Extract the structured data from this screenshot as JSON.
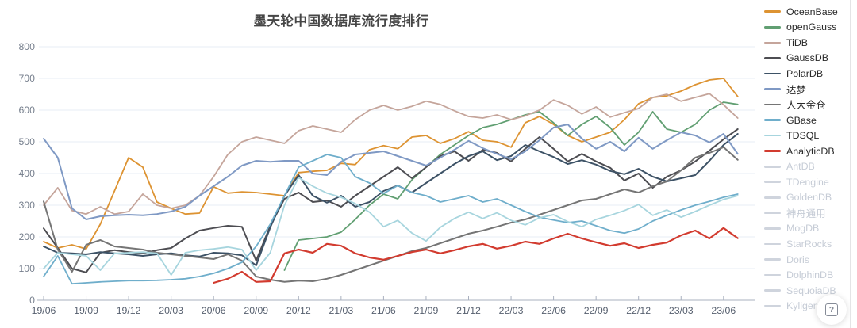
{
  "page": {
    "title": "墨天轮中国数据库流行度排行"
  },
  "help_button": {
    "glyph": "?"
  },
  "colors": {
    "grid": "#E7EDF6",
    "axis_line": "#A9B0BF",
    "y_label": "#757E8C",
    "x_label": "#57606F",
    "title_text": "#464646",
    "disabled_legend": "#C6CCD6",
    "disabled_swatch": "#CFD4DD"
  },
  "legend": {
    "items": [
      {
        "name": "OceanBase",
        "color": "#DD9332",
        "disabled": false
      },
      {
        "name": "openGauss",
        "color": "#619F72",
        "disabled": false
      },
      {
        "name": "TiDB",
        "color": "#C5A59B",
        "disabled": false
      },
      {
        "name": "GaussDB",
        "color": "#4D4D52",
        "disabled": false
      },
      {
        "name": "PolarDB",
        "color": "#3D5266",
        "disabled": false
      },
      {
        "name": "达梦",
        "color": "#7F99C4",
        "disabled": false
      },
      {
        "name": "人大金仓",
        "color": "#757575",
        "disabled": false
      },
      {
        "name": "GBase",
        "color": "#6FAECB",
        "disabled": false
      },
      {
        "name": "TDSQL",
        "color": "#A7D5DE",
        "disabled": false
      },
      {
        "name": "AnalyticDB",
        "color": "#D23B2F",
        "disabled": false
      },
      {
        "name": "AntDB",
        "color": "#CFD4DD",
        "disabled": true
      },
      {
        "name": "TDengine",
        "color": "#CFD4DD",
        "disabled": true
      },
      {
        "name": "GoldenDB",
        "color": "#CFD4DD",
        "disabled": true
      },
      {
        "name": "神舟通用",
        "color": "#CFD4DD",
        "disabled": true
      },
      {
        "name": "MogDB",
        "color": "#CFD4DD",
        "disabled": true
      },
      {
        "name": "StarRocks",
        "color": "#CFD4DD",
        "disabled": true
      },
      {
        "name": "Doris",
        "color": "#CFD4DD",
        "disabled": true
      },
      {
        "name": "DolphinDB",
        "color": "#CFD4DD",
        "disabled": true
      },
      {
        "name": "SequoiaDB",
        "color": "#CFD4DD",
        "disabled": true
      },
      {
        "name": "Kyligence",
        "color": "#CFD4DD",
        "disabled": true
      }
    ]
  },
  "chart_data": {
    "type": "line",
    "title": "墨天轮中国数据库流行度排行",
    "xlabel": "",
    "ylabel": "",
    "ylim": [
      0,
      800
    ],
    "grid": true,
    "legend_position": "right",
    "x_axis": {
      "labels": [
        "19/06",
        "19/09",
        "19/12",
        "20/03",
        "20/06",
        "20/09",
        "20/12",
        "21/03",
        "21/06",
        "21/09",
        "21/12",
        "22/03",
        "22/06",
        "22/09",
        "22/12",
        "23/03",
        "23/06"
      ],
      "months": [
        "2019/06",
        "2019/07",
        "2019/08",
        "2019/09",
        "2019/10",
        "2019/11",
        "2019/12",
        "2020/01",
        "2020/02",
        "2020/03",
        "2020/04",
        "2020/05",
        "2020/06",
        "2020/07",
        "2020/08",
        "2020/09",
        "2020/10",
        "2020/11",
        "2020/12",
        "2021/01",
        "2021/02",
        "2021/03",
        "2021/04",
        "2021/05",
        "2021/06",
        "2021/07",
        "2021/08",
        "2021/09",
        "2021/10",
        "2021/11",
        "2021/12",
        "2022/01",
        "2022/02",
        "2022/03",
        "2022/04",
        "2022/05",
        "2022/06",
        "2022/07",
        "2022/08",
        "2022/09",
        "2022/10",
        "2022/11",
        "2022/12",
        "2023/01",
        "2023/02",
        "2023/03",
        "2023/04",
        "2023/05",
        "2023/06",
        "2023/07"
      ]
    },
    "y_axis": {
      "min": 0,
      "max": 800,
      "step": 100,
      "ticks": [
        0,
        100,
        200,
        300,
        400,
        500,
        600,
        700,
        800
      ]
    },
    "series": [
      {
        "name": "OceanBase",
        "color": "#DD9332",
        "width": 1.8,
        "values": [
          185,
          165,
          175,
          162,
          240,
          345,
          450,
          420,
          310,
          290,
          272,
          275,
          358,
          338,
          342,
          340,
          335,
          330,
          403,
          407,
          410,
          432,
          428,
          475,
          488,
          478,
          515,
          520,
          495,
          510,
          532,
          505,
          500,
          483,
          560,
          580,
          555,
          520,
          500,
          515,
          530,
          570,
          620,
          640,
          645,
          660,
          680,
          695,
          700,
          643
        ]
      },
      {
        "name": "openGauss",
        "color": "#619F72",
        "width": 1.8,
        "values": [
          null,
          null,
          null,
          null,
          null,
          null,
          null,
          null,
          null,
          null,
          null,
          null,
          null,
          null,
          null,
          null,
          null,
          95,
          190,
          195,
          200,
          215,
          255,
          300,
          335,
          320,
          380,
          420,
          460,
          490,
          520,
          545,
          555,
          570,
          585,
          595,
          560,
          520,
          555,
          580,
          545,
          490,
          530,
          595,
          540,
          530,
          555,
          600,
          625,
          618
        ]
      },
      {
        "name": "TiDB",
        "color": "#C5A59B",
        "width": 1.8,
        "values": [
          300,
          355,
          283,
          272,
          295,
          272,
          280,
          335,
          300,
          290,
          300,
          330,
          390,
          460,
          500,
          515,
          505,
          495,
          535,
          550,
          540,
          530,
          570,
          600,
          615,
          600,
          612,
          628,
          618,
          598,
          580,
          575,
          585,
          570,
          582,
          600,
          632,
          615,
          588,
          610,
          578,
          592,
          605,
          640,
          650,
          628,
          640,
          652,
          617,
          575
        ]
      },
      {
        "name": "GaussDB",
        "color": "#4D4D52",
        "width": 2,
        "values": [
          227,
          165,
          100,
          88,
          150,
          158,
          152,
          148,
          158,
          165,
          195,
          220,
          228,
          235,
          232,
          125,
          235,
          320,
          340,
          310,
          315,
          295,
          330,
          360,
          390,
          420,
          385,
          420,
          455,
          470,
          440,
          475,
          465,
          438,
          478,
          515,
          478,
          438,
          462,
          438,
          418,
          378,
          400,
          355,
          390,
          410,
          438,
          472,
          508,
          540
        ]
      },
      {
        "name": "PolarDB",
        "color": "#3D5266",
        "width": 2,
        "values": [
          170,
          150,
          148,
          145,
          152,
          148,
          145,
          140,
          145,
          148,
          142,
          138,
          150,
          148,
          142,
          110,
          230,
          330,
          395,
          330,
          308,
          330,
          295,
          310,
          345,
          362,
          340,
          370,
          400,
          430,
          455,
          470,
          442,
          455,
          490,
          470,
          452,
          430,
          442,
          428,
          408,
          398,
          415,
          390,
          375,
          385,
          395,
          440,
          490,
          525
        ]
      },
      {
        "name": "达梦",
        "color": "#7F99C4",
        "width": 2,
        "values": [
          510,
          450,
          290,
          255,
          265,
          268,
          270,
          268,
          272,
          280,
          295,
          330,
          360,
          390,
          425,
          440,
          437,
          440,
          440,
          400,
          395,
          437,
          460,
          465,
          470,
          455,
          440,
          425,
          450,
          475,
          503,
          480,
          462,
          445,
          470,
          505,
          545,
          555,
          510,
          478,
          500,
          470,
          513,
          478,
          505,
          530,
          520,
          498,
          525,
          462
        ]
      },
      {
        "name": "人大金仓",
        "color": "#757575",
        "width": 2,
        "values": [
          312,
          160,
          90,
          175,
          190,
          170,
          165,
          160,
          150,
          145,
          140,
          135,
          130,
          145,
          125,
          75,
          65,
          58,
          62,
          60,
          68,
          80,
          95,
          110,
          125,
          140,
          155,
          165,
          180,
          195,
          210,
          220,
          232,
          245,
          255,
          270,
          285,
          300,
          315,
          320,
          335,
          350,
          340,
          360,
          375,
          410,
          450,
          465,
          483,
          443
        ]
      },
      {
        "name": "GBase",
        "color": "#6FAECB",
        "width": 1.8,
        "values": [
          75,
          140,
          52,
          55,
          58,
          60,
          62,
          62,
          63,
          65,
          68,
          75,
          85,
          100,
          120,
          170,
          240,
          330,
          420,
          440,
          460,
          450,
          390,
          370,
          337,
          362,
          340,
          330,
          310,
          320,
          330,
          310,
          320,
          300,
          280,
          262,
          253,
          245,
          250,
          235,
          220,
          212,
          225,
          250,
          268,
          285,
          300,
          312,
          325,
          335
        ]
      },
      {
        "name": "TDSQL",
        "color": "#A7D5DE",
        "width": 1.8,
        "values": [
          100,
          150,
          145,
          140,
          95,
          148,
          150,
          152,
          148,
          80,
          150,
          158,
          162,
          168,
          160,
          95,
          150,
          300,
          387,
          360,
          338,
          325,
          305,
          278,
          232,
          252,
          212,
          187,
          230,
          258,
          278,
          258,
          276,
          252,
          238,
          260,
          270,
          248,
          232,
          255,
          268,
          283,
          302,
          268,
          285,
          262,
          280,
          300,
          318,
          330
        ]
      },
      {
        "name": "AnalyticDB",
        "color": "#D23B2F",
        "width": 2.2,
        "values": [
          null,
          null,
          null,
          null,
          null,
          null,
          null,
          null,
          null,
          null,
          null,
          null,
          55,
          68,
          90,
          58,
          60,
          148,
          160,
          150,
          178,
          172,
          148,
          135,
          128,
          140,
          152,
          160,
          148,
          158,
          170,
          178,
          163,
          172,
          185,
          178,
          195,
          210,
          195,
          183,
          172,
          180,
          165,
          175,
          182,
          205,
          220,
          195,
          228,
          196
        ]
      }
    ]
  }
}
